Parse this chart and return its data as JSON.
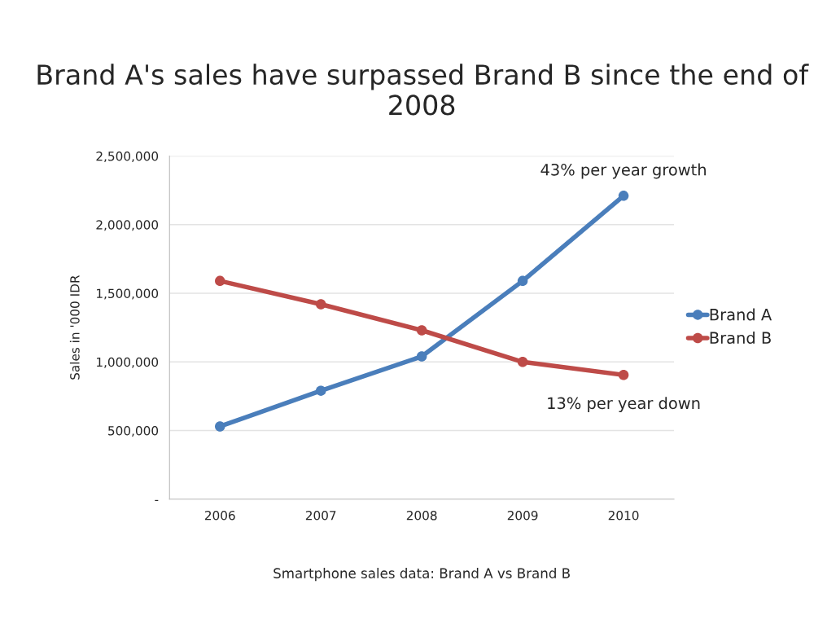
{
  "chart_data": {
    "type": "line",
    "title": "Brand A's sales have surpassed Brand B since the end of 2008",
    "xlabel": "Smartphone sales data: Brand A vs Brand B",
    "ylabel": "Sales in '000 IDR",
    "categories": [
      "2006",
      "2007",
      "2008",
      "2009",
      "2010"
    ],
    "series": [
      {
        "name": "Brand A",
        "color": "#4a7ebb",
        "values": [
          530000,
          790000,
          1040000,
          1590000,
          2210000
        ]
      },
      {
        "name": "Brand B",
        "color": "#be4b48",
        "values": [
          1590000,
          1420000,
          1230000,
          1000000,
          905000
        ]
      }
    ],
    "ylim": [
      0,
      2500000
    ],
    "yticks": [
      {
        "value": 0,
        "label": "-"
      },
      {
        "value": 500000,
        "label": "500,000"
      },
      {
        "value": 1000000,
        "label": "1,000,000"
      },
      {
        "value": 1500000,
        "label": "1,500,000"
      },
      {
        "value": 2000000,
        "label": "2,000,000"
      },
      {
        "value": 2500000,
        "label": "2,500,000"
      }
    ],
    "annotations": [
      {
        "text": "43% per year growth",
        "x": "2010",
        "y": 2210000
      },
      {
        "text": "13% per year down",
        "x": "2010",
        "y": 905000
      }
    ],
    "grid": "y",
    "legend": "right",
    "marker": "circle",
    "line_style": "solid"
  }
}
